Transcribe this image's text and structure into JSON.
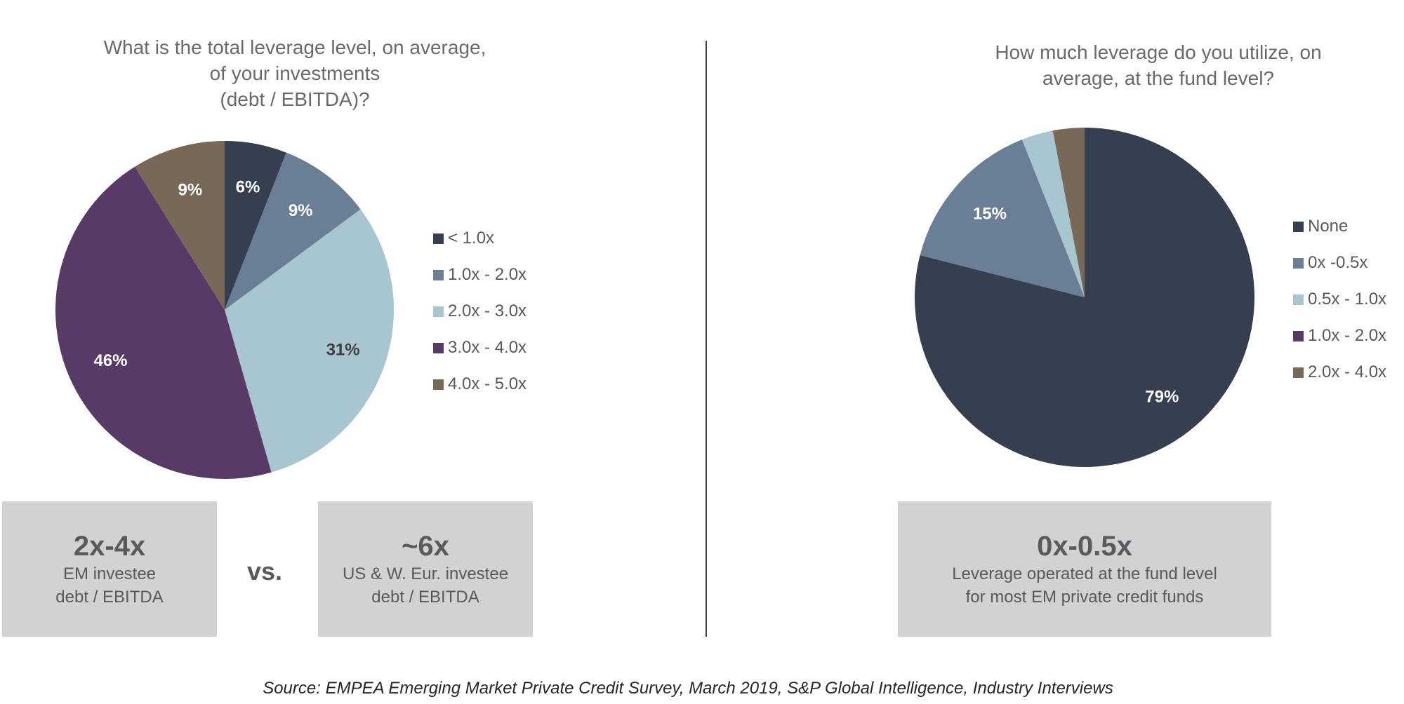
{
  "chart_data": [
    {
      "type": "pie",
      "title_lines": [
        "What is the total leverage level, on average,",
        "of your investments",
        "(debt / EBITDA)?"
      ],
      "series": [
        {
          "slices": [
            {
              "label": "< 1.0x",
              "value": 6,
              "display": "6%",
              "color": "#353f4f",
              "text_color": "#ffffff"
            },
            {
              "label": "1.0x - 2.0x",
              "value": 9,
              "display": "9%",
              "color": "#6a7f95",
              "text_color": "#ffffff"
            },
            {
              "label": "2.0x - 3.0x",
              "value": 31,
              "display": "31%",
              "color": "#a8c6d0",
              "text_color": "#404040"
            },
            {
              "label": "3.0x - 4.0x",
              "value": 46,
              "display": "46%",
              "color": "#573a65",
              "text_color": "#ffffff"
            },
            {
              "label": "4.0x - 5.0x",
              "value": 9,
              "display": "9%",
              "color": "#786858",
              "text_color": "#ffffff"
            }
          ]
        }
      ],
      "legend_position": "right"
    },
    {
      "type": "pie",
      "title_lines": [
        "How much leverage do you utilize, on",
        "average, at the fund level?"
      ],
      "series": [
        {
          "slices": [
            {
              "label": "None",
              "value": 79,
              "display": "79%",
              "color": "#353f4f",
              "text_color": "#ffffff"
            },
            {
              "label": "0x -0.5x",
              "value": 15,
              "display": "15%",
              "color": "#6a7f95",
              "text_color": "#ffffff"
            },
            {
              "label": "0.5x - 1.0x",
              "value": 3,
              "display": "",
              "color": "#a8c6d0",
              "text_color": "#404040"
            },
            {
              "label": "1.0x - 2.0x",
              "value": 0,
              "display": "",
              "color": "#573a65",
              "text_color": "#ffffff"
            },
            {
              "label": "2.0x - 4.0x",
              "value": 3,
              "display": "",
              "color": "#786858",
              "text_color": "#ffffff"
            }
          ]
        }
      ],
      "legend_position": "right"
    }
  ],
  "callouts": {
    "left_box": {
      "big": "2x-4x",
      "line1": "EM investee",
      "line2": "debt / EBITDA"
    },
    "vs": "vs.",
    "middle_box": {
      "big": "~6x",
      "line1": "US & W. Eur. investee",
      "line2": "debt / EBITDA"
    },
    "right_box": {
      "big": "0x-0.5x",
      "line1": "Leverage operated at the fund level",
      "line2": "for most EM private credit funds"
    }
  },
  "source": "Source: EMPEA Emerging Market Private Credit Survey, March 2019, S&P Global Intelligence, Industry Interviews"
}
